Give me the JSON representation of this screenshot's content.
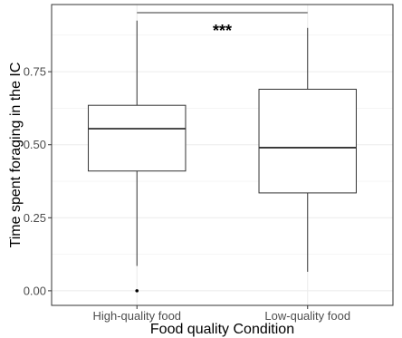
{
  "chart_data": {
    "type": "boxplot",
    "xlabel": "Food quality Condition",
    "ylabel": "Time spent foraging in the IC",
    "categories": [
      "High-quality food",
      "Low-quality food"
    ],
    "boxes": [
      {
        "category": "High-quality food",
        "whisker_low": 0.085,
        "q1": 0.41,
        "median": 0.555,
        "q3": 0.635,
        "whisker_high": 0.925,
        "outliers": [
          0.0
        ]
      },
      {
        "category": "Low-quality food",
        "whisker_low": 0.065,
        "q1": 0.335,
        "median": 0.49,
        "q3": 0.69,
        "whisker_high": 0.9,
        "outliers": []
      }
    ],
    "y_ticks": [
      0,
      0.25,
      0.5,
      0.75
    ],
    "y_tick_labels": [
      "0.00",
      "0.25",
      "0.50",
      "0.75"
    ],
    "ylim": [
      -0.05,
      0.98
    ],
    "significance": {
      "label": "***",
      "from": "High-quality food",
      "to": "Low-quality food"
    },
    "grid": true,
    "legend": "none"
  },
  "colors": {
    "grid": "#ebebeb",
    "box_fill": "#ffffff",
    "box_stroke": "#333333",
    "panel_border": "#333333"
  }
}
